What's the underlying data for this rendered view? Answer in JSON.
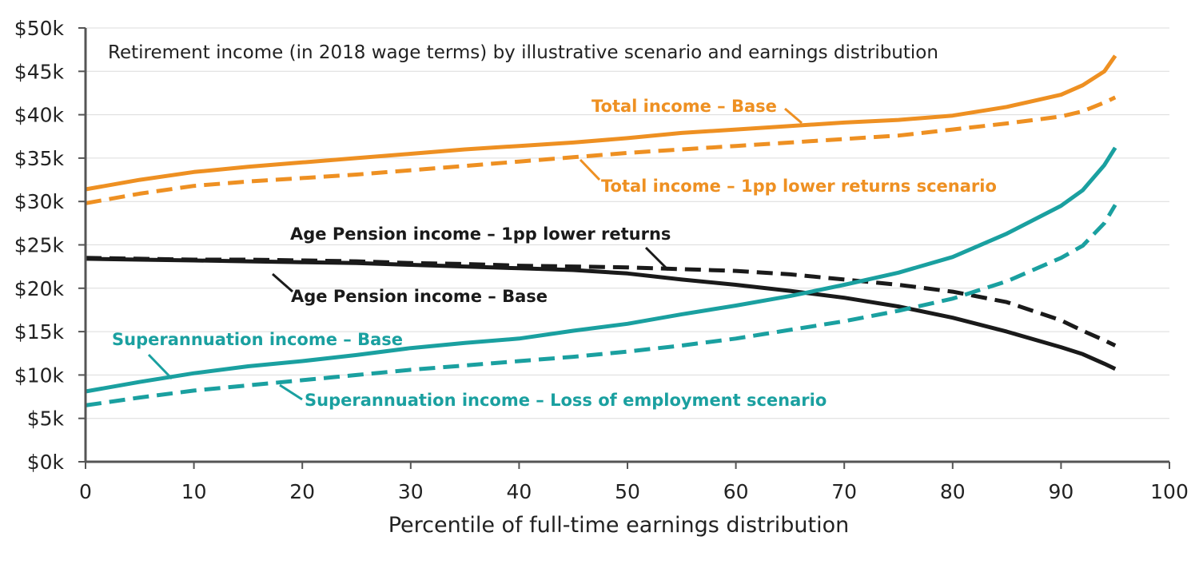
{
  "chart_data": {
    "type": "line",
    "title": "Retirement income (in 2018 wage terms) by illustrative scenario and earnings distribution",
    "xlabel": "Percentile of full-time earnings distribution",
    "ylabel": "",
    "xlim": [
      0,
      100
    ],
    "ylim": [
      0,
      50
    ],
    "x_ticks": [
      0,
      10,
      20,
      30,
      40,
      50,
      60,
      70,
      80,
      90,
      100
    ],
    "x_tick_labels": [
      "0",
      "10",
      "20",
      "30",
      "40",
      "50",
      "60",
      "70",
      "80",
      "90",
      "100"
    ],
    "y_ticks": [
      0,
      5,
      10,
      15,
      20,
      25,
      30,
      35,
      40,
      45,
      50
    ],
    "y_tick_labels": [
      "$0k",
      "$5k",
      "$10k",
      "$15k",
      "$20k",
      "$25k",
      "$30k",
      "$35k",
      "$40k",
      "$45k",
      "$50k"
    ],
    "grid": true,
    "legend": "direct labels on series",
    "series": [
      {
        "name": "Total income – Base",
        "color": "#ee9022",
        "dash": false,
        "x": [
          0,
          5,
          10,
          15,
          20,
          25,
          30,
          35,
          40,
          45,
          50,
          55,
          60,
          65,
          70,
          75,
          80,
          85,
          90,
          92,
          94,
          95
        ],
        "y": [
          31.4,
          32.5,
          33.4,
          34.0,
          34.5,
          35.0,
          35.5,
          36.0,
          36.4,
          36.8,
          37.3,
          37.9,
          38.3,
          38.7,
          39.1,
          39.4,
          39.9,
          40.9,
          42.3,
          43.4,
          45.0,
          46.8
        ]
      },
      {
        "name": "Total income – 1pp lower returns scenario",
        "color": "#ee9022",
        "dash": true,
        "x": [
          0,
          5,
          10,
          15,
          20,
          25,
          30,
          35,
          40,
          45,
          50,
          55,
          60,
          65,
          70,
          75,
          80,
          85,
          90,
          92,
          94,
          95
        ],
        "y": [
          29.8,
          30.9,
          31.8,
          32.3,
          32.7,
          33.1,
          33.6,
          34.1,
          34.6,
          35.1,
          35.6,
          36.0,
          36.4,
          36.8,
          37.2,
          37.6,
          38.3,
          39.0,
          39.8,
          40.4,
          41.4,
          42.0
        ]
      },
      {
        "name": "Age Pension income – 1pp lower returns",
        "color": "#1a1a1a",
        "dash": true,
        "x": [
          0,
          5,
          10,
          15,
          20,
          25,
          30,
          35,
          40,
          45,
          50,
          55,
          60,
          65,
          70,
          75,
          80,
          85,
          90,
          92,
          94,
          95
        ],
        "y": [
          23.5,
          23.4,
          23.3,
          23.3,
          23.2,
          23.1,
          22.9,
          22.8,
          22.6,
          22.5,
          22.4,
          22.2,
          22.0,
          21.6,
          21.0,
          20.4,
          19.6,
          18.4,
          16.3,
          15.1,
          14.0,
          13.4
        ]
      },
      {
        "name": "Age Pension income – Base",
        "color": "#1a1a1a",
        "dash": false,
        "x": [
          0,
          5,
          10,
          15,
          20,
          25,
          30,
          35,
          40,
          45,
          50,
          55,
          60,
          65,
          70,
          75,
          80,
          85,
          90,
          92,
          94,
          95
        ],
        "y": [
          23.4,
          23.3,
          23.2,
          23.1,
          23.0,
          22.9,
          22.7,
          22.5,
          22.3,
          22.1,
          21.7,
          21.0,
          20.4,
          19.7,
          18.9,
          17.9,
          16.6,
          15.0,
          13.2,
          12.4,
          11.3,
          10.7
        ]
      },
      {
        "name": "Superannuation income – Base",
        "color": "#1aa0a0",
        "dash": false,
        "x": [
          0,
          5,
          10,
          15,
          20,
          25,
          30,
          35,
          40,
          45,
          50,
          55,
          60,
          65,
          70,
          75,
          80,
          85,
          90,
          92,
          94,
          95
        ],
        "y": [
          8.1,
          9.2,
          10.2,
          11.0,
          11.6,
          12.3,
          13.1,
          13.7,
          14.2,
          15.1,
          15.9,
          17.0,
          18.0,
          19.1,
          20.4,
          21.8,
          23.6,
          26.3,
          29.5,
          31.3,
          34.2,
          36.2
        ]
      },
      {
        "name": "Superannuation income – Loss of employment scenario",
        "color": "#1aa0a0",
        "dash": true,
        "x": [
          0,
          5,
          10,
          15,
          20,
          25,
          30,
          35,
          40,
          45,
          50,
          55,
          60,
          65,
          70,
          75,
          80,
          85,
          90,
          92,
          94,
          95
        ],
        "y": [
          6.5,
          7.4,
          8.2,
          8.8,
          9.4,
          10.0,
          10.6,
          11.1,
          11.6,
          12.1,
          12.7,
          13.4,
          14.2,
          15.2,
          16.2,
          17.4,
          18.8,
          20.8,
          23.5,
          24.9,
          27.5,
          29.6
        ]
      }
    ]
  }
}
